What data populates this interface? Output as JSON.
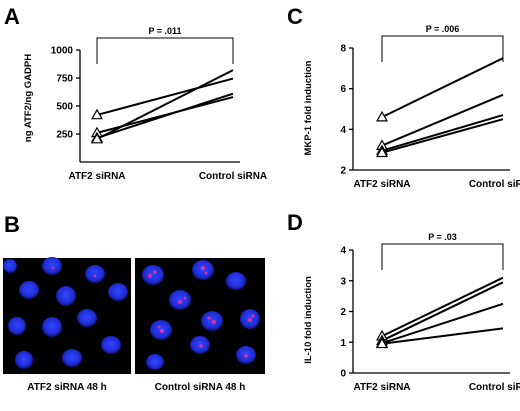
{
  "chart_data": [
    {
      "panel": "A",
      "type": "line",
      "ylabel": "ng ATF2/ng GADPH",
      "categories": [
        "ATF2 siRNA",
        "Control siRNA"
      ],
      "ylim": [
        0,
        1000
      ],
      "yticks": [
        250,
        500,
        750,
        1000
      ],
      "series": [
        {
          "values": [
            420,
            745
          ]
        },
        {
          "values": [
            260,
            580
          ]
        },
        {
          "values": [
            215,
            610
          ]
        },
        {
          "values": [
            205,
            820
          ]
        }
      ],
      "annotation": "P = .011"
    },
    {
      "panel": "C",
      "type": "line",
      "ylabel": "MKP-1 fold induction",
      "categories": [
        "ATF2 siRNA",
        "Control siRNA"
      ],
      "ylim": [
        2,
        8
      ],
      "yticks": [
        2,
        4,
        6,
        8
      ],
      "series": [
        {
          "values": [
            4.6,
            7.5
          ]
        },
        {
          "values": [
            3.2,
            5.7
          ]
        },
        {
          "values": [
            2.95,
            4.7
          ]
        },
        {
          "values": [
            2.85,
            4.5
          ]
        }
      ],
      "annotation": "P = .006"
    },
    {
      "panel": "D",
      "type": "line",
      "ylabel": "IL-10  fold induction",
      "categories": [
        "ATF2 siRNA",
        "Control siRNA"
      ],
      "ylim": [
        0,
        4
      ],
      "yticks": [
        0,
        1,
        2,
        3,
        4
      ],
      "series": [
        {
          "values": [
            1.2,
            3.1
          ]
        },
        {
          "values": [
            1.05,
            2.95
          ]
        },
        {
          "values": [
            0.97,
            2.25
          ]
        },
        {
          "values": [
            0.95,
            1.45
          ]
        }
      ],
      "annotation": "P = .03"
    }
  ],
  "panel_b": {
    "letter": "B",
    "left_caption": "ATF2 siRNA  48 h",
    "right_caption": "Control siRNA  48 h",
    "nucleus_color": "#1f2ed6",
    "foci_color": "#ff2aa0",
    "background": "#000000"
  }
}
